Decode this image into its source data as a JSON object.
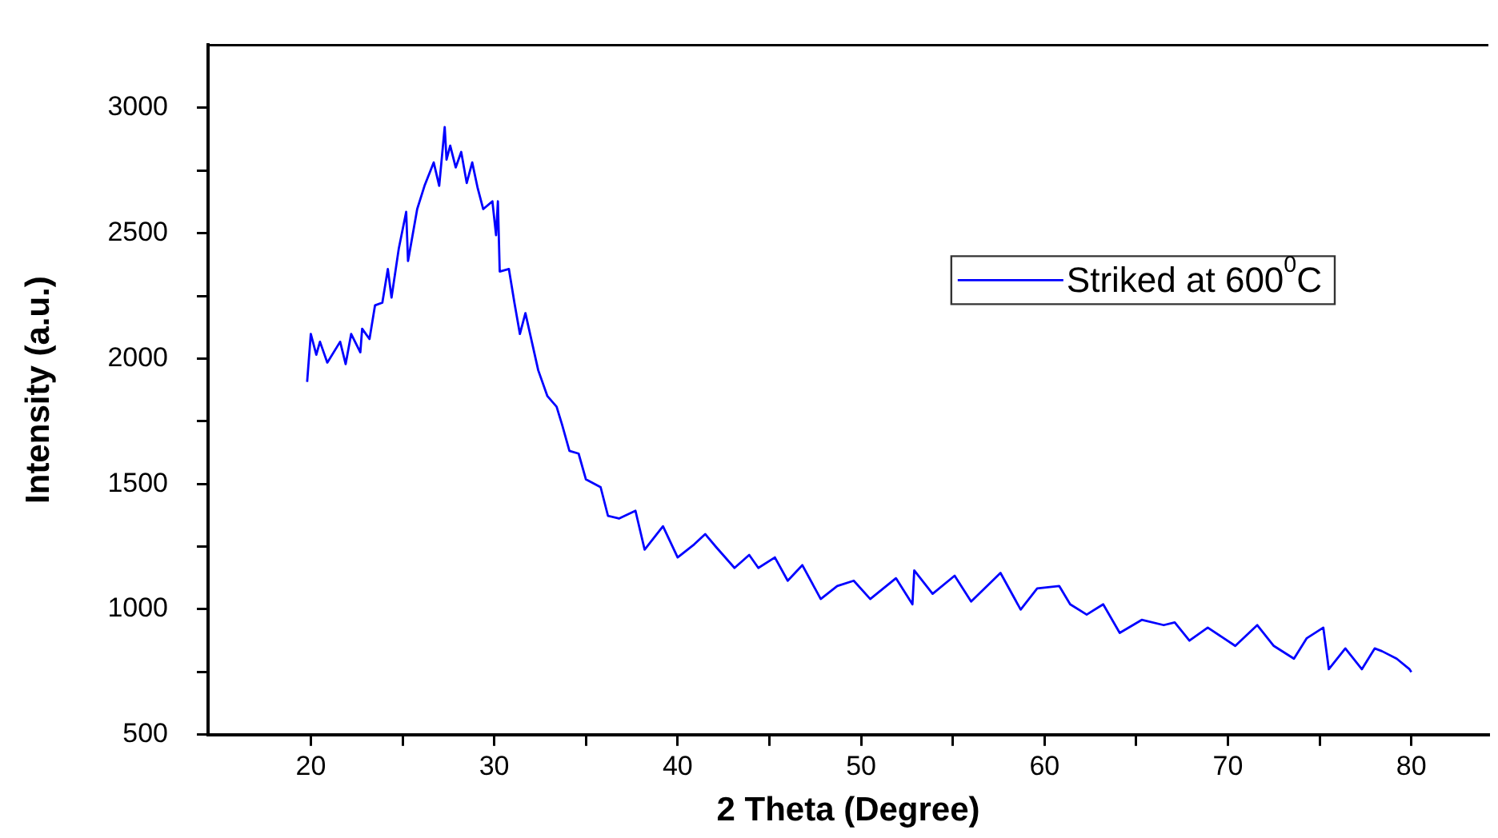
{
  "chart_data": {
    "type": "line",
    "xlabel": "2 Theta (Degree)",
    "ylabel": "Intensity (a.u.)",
    "xlim": [
      14.4,
      84.2
    ],
    "ylim": [
      500,
      3250
    ],
    "xticks": [
      20,
      30,
      40,
      50,
      60,
      70,
      80
    ],
    "yticks": [
      500,
      1000,
      1500,
      2000,
      2500,
      3000
    ],
    "grid": false,
    "legend": "top right",
    "marker": "none",
    "line_style": "solid",
    "series": [
      {
        "name": "Striked at 600$^{0}$C",
        "color": "#0000ff",
        "x": [
          19.8,
          20.0,
          20.3,
          20.5,
          20.9,
          21.6,
          21.9,
          22.2,
          22.7,
          22.8,
          23.2,
          23.5,
          23.9,
          24.2,
          24.4,
          24.8,
          25.2,
          25.3,
          25.8,
          26.2,
          26.7,
          27.0,
          27.3,
          27.4,
          27.6,
          27.9,
          28.2,
          28.5,
          28.8,
          29.1,
          29.4,
          29.9,
          30.1,
          30.2,
          30.3,
          30.8,
          31.1,
          31.4,
          31.7,
          32.4,
          32.9,
          33.4,
          33.7,
          34.1,
          34.6,
          35.0,
          35.8,
          36.2,
          36.8,
          37.7,
          38.2,
          39.2,
          40.0,
          40.9,
          41.5,
          42.1,
          43.1,
          43.9,
          44.4,
          45.3,
          46.0,
          46.8,
          47.8,
          48.7,
          49.6,
          50.5,
          51.9,
          52.8,
          52.9,
          53.9,
          55.1,
          56.0,
          57.6,
          58.7,
          59.6,
          60.8,
          61.4,
          62.3,
          63.2,
          64.1,
          65.3,
          66.5,
          67.1,
          67.9,
          68.9,
          70.4,
          71.6,
          72.5,
          73.6,
          74.3,
          75.2,
          75.5,
          76.4,
          77.3,
          78.0,
          78.4,
          79.2,
          79.9,
          80.0
        ],
        "values": [
          1907,
          2098,
          2015,
          2067,
          1984,
          2067,
          1978,
          2098,
          2025,
          2119,
          2078,
          2212,
          2223,
          2357,
          2243,
          2440,
          2585,
          2389,
          2596,
          2689,
          2782,
          2689,
          2923,
          2793,
          2849,
          2762,
          2824,
          2700,
          2782,
          2679,
          2596,
          2627,
          2492,
          2627,
          2347,
          2357,
          2223,
          2098,
          2181,
          1953,
          1850,
          1808,
          1736,
          1632,
          1621,
          1518,
          1487,
          1373,
          1362,
          1393,
          1238,
          1331,
          1207,
          1259,
          1300,
          1248,
          1165,
          1217,
          1165,
          1207,
          1114,
          1176,
          1041,
          1093,
          1114,
          1041,
          1124,
          1020,
          1155,
          1062,
          1134,
          1031,
          1145,
          999,
          1083,
          1093,
          1020,
          979,
          1020,
          906,
          958,
          937,
          948,
          875,
          927,
          854,
          937,
          854,
          803,
          885,
          927,
          761,
          844,
          761,
          844,
          833,
          803,
          761,
          750
        ]
      }
    ]
  }
}
